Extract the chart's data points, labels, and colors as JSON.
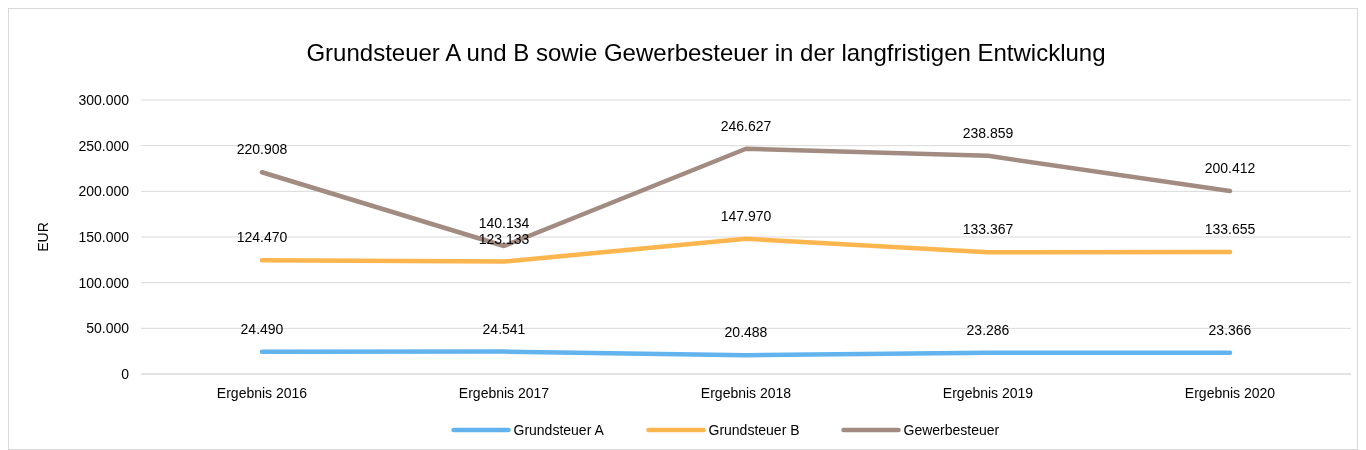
{
  "chart_data": {
    "type": "line",
    "title": "Grundsteuer A und B sowie Gewerbesteuer in der langfristigen Entwicklung",
    "ylabel": "EUR",
    "categories": [
      "Ergebnis 2016",
      "Ergebnis 2017",
      "Ergebnis 2018",
      "Ergebnis 2019",
      "Ergebnis 2020"
    ],
    "series": [
      {
        "name": "Grundsteuer A",
        "color": "#62b3ee",
        "values": [
          24490,
          24541,
          20488,
          23286,
          23366
        ],
        "value_labels": [
          "24.490",
          "24.541",
          "20.488",
          "23.286",
          "23.366"
        ]
      },
      {
        "name": "Grundsteuer B",
        "color": "#fdb54d",
        "values": [
          124470,
          123133,
          147970,
          133367,
          133655
        ],
        "value_labels": [
          "124.470",
          "123.133",
          "147.970",
          "133.367",
          "133.655"
        ]
      },
      {
        "name": "Gewerbesteuer",
        "color": "#a28b81",
        "values": [
          220908,
          140134,
          246627,
          238859,
          200412
        ],
        "value_labels": [
          "220.908",
          "140.134",
          "246.627",
          "238.859",
          "200.412"
        ]
      }
    ],
    "ylim": [
      0,
      300000
    ],
    "yticks": [
      0,
      {
        "value": 50000,
        "label": "50.000"
      },
      {
        "value": 100000,
        "label": "100.000"
      },
      {
        "value": 150000,
        "label": "150.000"
      },
      {
        "value": 200000,
        "label": "200.000"
      },
      {
        "value": 250000,
        "label": "250.000"
      },
      {
        "value": 300000,
        "label": "300.000"
      }
    ],
    "grid": "y",
    "legend": "bottom",
    "marker": "none",
    "line_style": "solid"
  }
}
